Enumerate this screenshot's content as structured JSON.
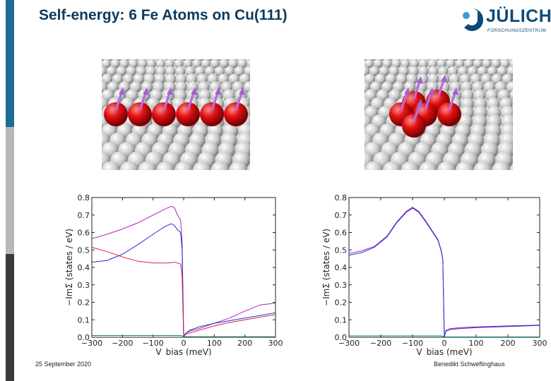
{
  "slide": {
    "title": "Self-energy: 6 Fe Atoms on Cu(111)",
    "date": "25 September 2020",
    "author": "Benedikt Schweflinghaus",
    "sidebar_colors": [
      "#ffffff",
      "#1f6a96",
      "#b8b8b8",
      "#3a3a3a"
    ]
  },
  "logo": {
    "name": "JÜLICH",
    "subtitle": "FORSCHUNGSZENTRUM",
    "colors": [
      "#0d4a78",
      "#3a9ad9"
    ]
  },
  "images": [
    {
      "name": "fe-chain-on-cu111",
      "content": "linear chain of 6 red Fe atoms with purple spin arrows on grey Cu(111) surface"
    },
    {
      "name": "fe-compact-cluster-on-cu111",
      "content": "compact cluster of 6 red Fe atoms with purple spin arrows on grey Cu(111) surface"
    }
  ],
  "chart_data": [
    {
      "type": "line",
      "xlabel": "V_bias (meV)",
      "ylabel": "−ImΣ (states / eV)",
      "xlim": [
        -300,
        300
      ],
      "ylim": [
        0,
        0.8
      ],
      "xticks": [
        "−300",
        "−200",
        "−100",
        "0",
        "100",
        "200",
        "300"
      ],
      "yticks": [
        "0.0",
        "0.1",
        "0.2",
        "0.3",
        "0.4",
        "0.5",
        "0.6",
        "0.7",
        "0.8"
      ],
      "grid": false,
      "series": [
        {
          "color": "#b020c0",
          "x": [
            -300,
            -250,
            -200,
            -150,
            -100,
            -60,
            -40,
            -30,
            -20,
            -10,
            -5,
            0,
            5,
            20,
            50,
            100,
            150,
            200,
            250,
            300
          ],
          "y": [
            0.565,
            0.59,
            0.62,
            0.655,
            0.7,
            0.735,
            0.75,
            0.742,
            0.7,
            0.67,
            0.55,
            0.002,
            0.02,
            0.035,
            0.05,
            0.08,
            0.11,
            0.15,
            0.185,
            0.195
          ]
        },
        {
          "color": "#2030c8",
          "x": [
            -300,
            -250,
            -200,
            -150,
            -100,
            -60,
            -40,
            -30,
            -20,
            -10,
            -5,
            0,
            5,
            20,
            50,
            100,
            150,
            200,
            250,
            300
          ],
          "y": [
            0.43,
            0.44,
            0.475,
            0.53,
            0.59,
            0.635,
            0.65,
            0.64,
            0.615,
            0.6,
            0.5,
            0.002,
            0.02,
            0.04,
            0.06,
            0.08,
            0.095,
            0.11,
            0.125,
            0.14
          ]
        },
        {
          "color": "#d02050",
          "x": [
            -300,
            -250,
            -200,
            -150,
            -100,
            -50,
            -30,
            -20,
            -10,
            -5,
            0,
            5,
            20,
            50,
            100,
            150,
            200,
            250,
            300
          ],
          "y": [
            0.515,
            0.49,
            0.46,
            0.435,
            0.425,
            0.425,
            0.43,
            0.425,
            0.42,
            0.35,
            0.002,
            0.015,
            0.025,
            0.04,
            0.065,
            0.085,
            0.1,
            0.115,
            0.13
          ]
        },
        {
          "color": "#108080",
          "x": [
            -300,
            -200,
            -100,
            -10,
            -5,
            0,
            5,
            100,
            200,
            300
          ],
          "y": [
            0.01,
            0.01,
            0.01,
            0.01,
            0.008,
            0.004,
            0.003,
            0.003,
            0.003,
            0.003
          ]
        }
      ]
    },
    {
      "type": "line",
      "xlabel": "V_bias (meV)",
      "ylabel": "−ImΣ (states / eV)",
      "xlim": [
        -300,
        300
      ],
      "ylim": [
        0,
        0.8
      ],
      "xticks": [
        "−300",
        "−200",
        "−100",
        "0",
        "100",
        "200",
        "300"
      ],
      "yticks": [
        "0.0",
        "0.1",
        "0.2",
        "0.3",
        "0.4",
        "0.5",
        "0.6",
        "0.7",
        "0.8"
      ],
      "grid": false,
      "series": [
        {
          "color": "#b020c0",
          "x": [
            -300,
            -260,
            -220,
            -180,
            -150,
            -120,
            -100,
            -80,
            -60,
            -40,
            -20,
            -10,
            -5,
            0,
            5,
            20,
            50,
            100,
            200,
            300
          ],
          "y": [
            0.48,
            0.495,
            0.52,
            0.58,
            0.66,
            0.72,
            0.745,
            0.72,
            0.67,
            0.615,
            0.56,
            0.5,
            0.45,
            0.002,
            0.04,
            0.05,
            0.055,
            0.06,
            0.065,
            0.07
          ]
        },
        {
          "color": "#2030c8",
          "x": [
            -300,
            -260,
            -220,
            -180,
            -150,
            -120,
            -100,
            -80,
            -60,
            -40,
            -20,
            -10,
            -5,
            0,
            5,
            20,
            50,
            100,
            200,
            300
          ],
          "y": [
            0.47,
            0.485,
            0.515,
            0.575,
            0.655,
            0.715,
            0.74,
            0.715,
            0.665,
            0.61,
            0.555,
            0.495,
            0.445,
            0.002,
            0.035,
            0.045,
            0.05,
            0.055,
            0.062,
            0.068
          ]
        },
        {
          "color": "#108080",
          "x": [
            -300,
            -200,
            -100,
            -10,
            -5,
            0,
            5,
            100,
            200,
            300
          ],
          "y": [
            0.008,
            0.008,
            0.008,
            0.008,
            0.006,
            0.003,
            0.002,
            0.002,
            0.002,
            0.002
          ]
        }
      ]
    }
  ]
}
